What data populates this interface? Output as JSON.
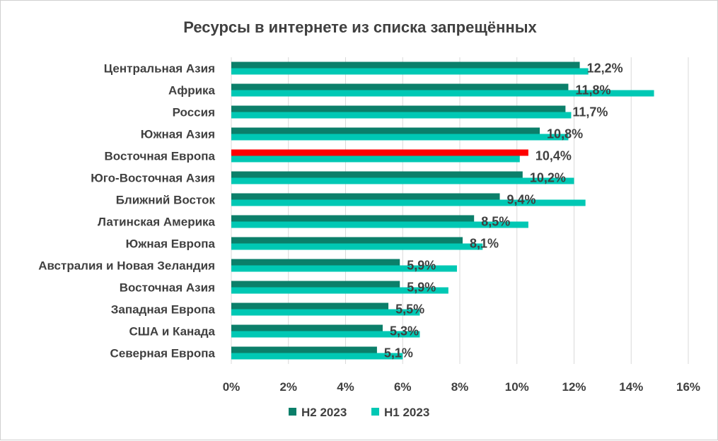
{
  "chart_data": {
    "type": "bar",
    "orientation": "horizontal",
    "title": "Ресурсы в интернете из списка запрещённых",
    "categories": [
      "Центральная Азия",
      "Африка",
      "Россия",
      "Южная Азия",
      "Восточная Европа",
      "Юго-Восточная Азия",
      "Ближний Восток",
      "Латинская Америка",
      "Южная Европа",
      "Австралия и Новая Зеландия",
      "Восточная Азия",
      "Западная Европа",
      "США и Канада",
      "Северная Европа"
    ],
    "series": [
      {
        "name": "H2 2023",
        "color": "#0b7f6a",
        "values": [
          12.2,
          11.8,
          11.7,
          10.8,
          10.4,
          10.2,
          9.4,
          8.5,
          8.1,
          5.9,
          5.9,
          5.5,
          5.3,
          5.1
        ],
        "highlight": {
          "index": 4,
          "color": "#ff0000"
        }
      },
      {
        "name": "H1 2023",
        "color": "#00c8b4",
        "values": [
          12.5,
          14.8,
          11.9,
          11.8,
          10.1,
          12.0,
          12.4,
          10.4,
          8.8,
          7.9,
          7.6,
          6.6,
          6.6,
          6.0
        ]
      }
    ],
    "data_labels": [
      "12,2%",
      "11,8%",
      "11,7%",
      "10,8%",
      "10,4%",
      "10,2%",
      "9,4%",
      "8,5%",
      "8,1%",
      "5,9%",
      "5,9%",
      "5,5%",
      "5,3%",
      "5,1%"
    ],
    "x_ticks": [
      0,
      2,
      4,
      6,
      8,
      10,
      12,
      14,
      16
    ],
    "x_tick_labels": [
      "0%",
      "2%",
      "4%",
      "6%",
      "8%",
      "10%",
      "12%",
      "14%",
      "16%"
    ],
    "xlim": [
      0,
      16
    ],
    "xlabel": "",
    "ylabel": "",
    "grid": true,
    "legend": "bottom"
  }
}
